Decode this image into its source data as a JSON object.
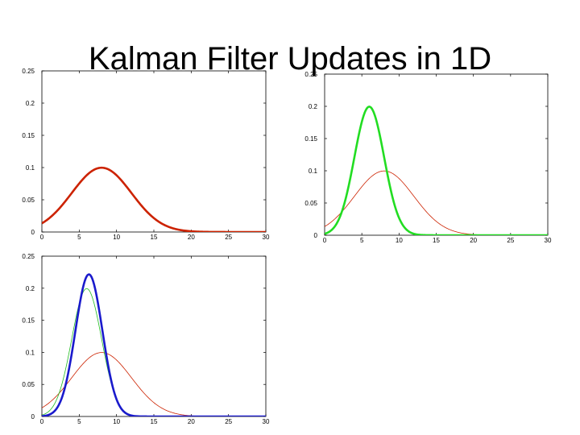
{
  "slide": {
    "title": "Kalman Filter Updates in 1D"
  },
  "chart_data": [
    {
      "type": "line",
      "id": "top-left",
      "title": "",
      "xlabel": "",
      "ylabel": "",
      "xlim": [
        0,
        30
      ],
      "ylim": [
        0,
        0.25
      ],
      "xticks": [
        0,
        5,
        10,
        15,
        20,
        25,
        30
      ],
      "yticks": [
        0,
        0.05,
        0.1,
        0.15,
        0.2,
        0.25
      ],
      "xtick_labels": [
        "0",
        "5",
        "10",
        "15",
        "20",
        "25",
        "30"
      ],
      "ytick_labels": [
        "0",
        "0.05",
        "0.1",
        "0.15",
        "0.2",
        "0.25"
      ],
      "series": [
        {
          "kind": "gaussian",
          "mean": 8,
          "sigma": 4,
          "color": "#cc2200",
          "style": "solid-thick"
        }
      ]
    },
    {
      "type": "line",
      "id": "top-right",
      "title": "",
      "xlabel": "",
      "ylabel": "",
      "xlim": [
        0,
        30
      ],
      "ylim": [
        0,
        0.25
      ],
      "xticks": [
        0,
        5,
        10,
        15,
        20,
        25,
        30
      ],
      "yticks": [
        0,
        0.05,
        0.1,
        0.15,
        0.2,
        0.25
      ],
      "xtick_labels": [
        "0",
        "5",
        "10",
        "15",
        "20",
        "25",
        "30"
      ],
      "ytick_labels": [
        "0",
        "0.05",
        "0.1",
        "0.15",
        "0.2",
        "0.25"
      ],
      "series": [
        {
          "kind": "gaussian",
          "mean": 8,
          "sigma": 4,
          "color": "#cc2200",
          "style": "thin"
        },
        {
          "kind": "gaussian",
          "mean": 6,
          "sigma": 2,
          "color": "#22dd22",
          "style": "solid-thick"
        }
      ]
    },
    {
      "type": "line",
      "id": "bottom-left",
      "title": "",
      "xlabel": "",
      "ylabel": "",
      "xlim": [
        0,
        30
      ],
      "ylim": [
        0,
        0.25
      ],
      "xticks": [
        0,
        5,
        10,
        15,
        20,
        25,
        30
      ],
      "yticks": [
        0,
        0.05,
        0.1,
        0.15,
        0.2,
        0.25
      ],
      "xtick_labels": [
        "0",
        "5",
        "10",
        "15",
        "20",
        "25",
        "30"
      ],
      "ytick_labels": [
        "0",
        "0.05",
        "0.1",
        "0.15",
        "0.2",
        "0.25"
      ],
      "series": [
        {
          "kind": "gaussian",
          "mean": 8,
          "sigma": 4,
          "color": "#cc2200",
          "style": "thin"
        },
        {
          "kind": "gaussian",
          "mean": 6,
          "sigma": 2,
          "color": "#22bb22",
          "style": "thin"
        },
        {
          "kind": "gaussian",
          "mean": 6.3,
          "sigma": 1.8,
          "color": "#1a1acc",
          "style": "solid-thick"
        }
      ]
    }
  ]
}
